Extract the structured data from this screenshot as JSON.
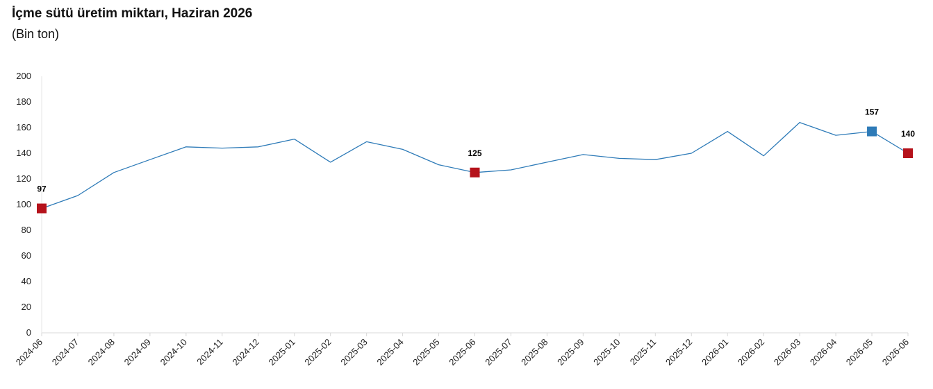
{
  "chart_data": {
    "type": "line",
    "title": "İçme sütü üretim miktarı, Haziran 2026",
    "subtitle": "(Bin ton)",
    "xlabel": "",
    "ylabel": "",
    "ylim": [
      0,
      200
    ],
    "yticks": [
      0,
      20,
      40,
      60,
      80,
      100,
      120,
      140,
      160,
      180,
      200
    ],
    "grid": false,
    "categories": [
      "2024-06",
      "2024-07",
      "2024-08",
      "2024-09",
      "2024-10",
      "2024-11",
      "2024-12",
      "2025-01",
      "2025-02",
      "2025-03",
      "2025-04",
      "2025-05",
      "2025-06",
      "2025-07",
      "2025-08",
      "2025-09",
      "2025-10",
      "2025-11",
      "2025-12",
      "2026-01",
      "2026-02",
      "2026-03",
      "2026-04",
      "2026-05",
      "2026-06"
    ],
    "series": [
      {
        "values": [
          97,
          107,
          125,
          135,
          145,
          144,
          145,
          151,
          133,
          149,
          143,
          131,
          125,
          127,
          133,
          139,
          136,
          135,
          140,
          157,
          138,
          164,
          154,
          157,
          140
        ],
        "color": "#2e7bb8"
      }
    ],
    "highlighted_points": [
      {
        "category": "2024-06",
        "value": 97,
        "label": "97",
        "color": "#b5121b"
      },
      {
        "category": "2025-06",
        "value": 125,
        "label": "125",
        "color": "#b5121b"
      },
      {
        "category": "2026-05",
        "value": 157,
        "label": "157",
        "color": "#2e7bb8"
      },
      {
        "category": "2026-06",
        "value": 140,
        "label": "140",
        "color": "#b5121b"
      }
    ]
  }
}
